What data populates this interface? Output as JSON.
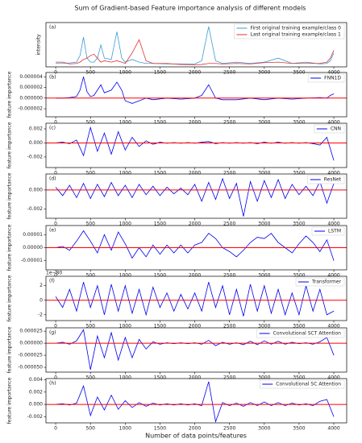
{
  "chart_data": [
    {
      "type": "line",
      "title": "Sum of Gradient-based Feature importance analysis of different models",
      "label": "(a)",
      "ylabel": "intensity",
      "x": [
        0,
        100,
        200,
        300,
        350,
        400,
        450,
        500,
        550,
        600,
        650,
        700,
        800,
        880,
        950,
        1000,
        1100,
        1200,
        1300,
        1400,
        1600,
        1800,
        2000,
        2100,
        2200,
        2300,
        2400,
        2600,
        2800,
        3000,
        3200,
        3400,
        3600,
        3800,
        3900,
        3950,
        4000
      ],
      "series": [
        {
          "name": "First original training example/class 0",
          "color": "#3a9bd5",
          "values": [
            1,
            1,
            1.2,
            1.5,
            4,
            11,
            3,
            1.5,
            1.5,
            3,
            8,
            3,
            2.5,
            13,
            3,
            1.5,
            2.5,
            1.5,
            1,
            1,
            0.8,
            0.8,
            0.8,
            2,
            15,
            2,
            1,
            1.5,
            1,
            1.5,
            3,
            1,
            1.5,
            0.8,
            1,
            2,
            5
          ]
        },
        {
          "name": "Last original training example/class 1",
          "color": "#e03030",
          "values": [
            1.5,
            1.5,
            0.8,
            1,
            1.5,
            2.5,
            3,
            4,
            4.5,
            3,
            1.5,
            2,
            1.5,
            2,
            1.5,
            1,
            5,
            10,
            2,
            1,
            1,
            0.6,
            0.5,
            0.6,
            1,
            1,
            0.8,
            1,
            0.8,
            1.3,
            1.5,
            1,
            1,
            1,
            1.5,
            3,
            6
          ]
        }
      ],
      "xlim": [
        -140,
        4185
      ],
      "xticks": [
        0,
        500,
        1000,
        1500,
        2000,
        2500,
        3000,
        3500,
        4000
      ],
      "ylim": [
        -0.3,
        16.5
      ],
      "yticks": []
    },
    {
      "type": "line",
      "label": "(b)",
      "ylabel": "feature importance",
      "hline": 0,
      "hline_color": "#ff0000",
      "x": [
        0,
        100,
        200,
        300,
        350,
        400,
        450,
        500,
        550,
        600,
        650,
        700,
        800,
        880,
        950,
        1000,
        1100,
        1200,
        1300,
        1400,
        1600,
        1800,
        2000,
        2100,
        2200,
        2300,
        2400,
        2600,
        2800,
        3000,
        3200,
        3400,
        3600,
        3800,
        3900,
        3950,
        4000
      ],
      "series": [
        {
          "name": "FNN1D",
          "color": "#0000ee",
          "values": [
            0,
            0,
            1e-07,
            3e-07,
            1.5e-06,
            4e-06,
            1.2e-06,
            3e-07,
            5e-07,
            1.5e-06,
            2.5e-06,
            1e-06,
            1.5e-06,
            3e-06,
            1.5e-06,
            -5e-07,
            -1e-06,
            -5e-07,
            0,
            -3e-07,
            0,
            -2e-07,
            0,
            5e-07,
            2.5e-06,
            0,
            -3e-07,
            -3e-07,
            0,
            -3e-07,
            0,
            -2e-07,
            0,
            1e-07,
            0,
            5e-07,
            8e-07
          ]
        }
      ],
      "xlim": [
        -140,
        4185
      ],
      "xticks": [
        0,
        500,
        1000,
        1500,
        2000,
        2500,
        3000,
        3500,
        4000
      ],
      "ylim": [
        -3.5e-06,
        4.8e-06
      ],
      "yticks": [
        {
          "value": -2e-06,
          "label": "-0.000002"
        },
        {
          "value": 0,
          "label": "0.000000"
        },
        {
          "value": 2e-06,
          "label": "0.000002"
        },
        {
          "value": 4e-06,
          "label": "0.000004"
        }
      ]
    },
    {
      "type": "line",
      "label": "(c)",
      "ylabel": "feature importance",
      "hline": 0,
      "hline_color": "#ff0000",
      "x": [
        0,
        100,
        200,
        300,
        400,
        500,
        600,
        700,
        800,
        900,
        1000,
        1100,
        1200,
        1300,
        1400,
        1500,
        1600,
        1700,
        1800,
        1900,
        2000,
        2100,
        2200,
        2300,
        2400,
        2500,
        2600,
        2700,
        2800,
        2900,
        3000,
        3100,
        3200,
        3300,
        3400,
        3500,
        3600,
        3700,
        3800,
        3900,
        4000
      ],
      "series": [
        {
          "name": "CNN",
          "color": "#0000ee",
          "values": [
            0,
            0.0001,
            -0.0001,
            0.0004,
            -0.0018,
            0.0022,
            -0.0012,
            0.0014,
            -0.0016,
            0.0016,
            -0.001,
            0.0008,
            -0.0005,
            0.0003,
            -0.0002,
            0.0001,
            -5e-05,
            5e-05,
            -5e-05,
            5e-05,
            -5e-05,
            0.0001,
            0.0002,
            -0.0001,
            5e-05,
            -5e-05,
            5e-05,
            -5e-05,
            5e-05,
            -0.0001,
            0.0001,
            -5e-05,
            0.0001,
            -5e-05,
            5e-05,
            -5e-05,
            5e-05,
            -0.0001,
            -0.0003,
            0.0008,
            -0.0025
          ]
        }
      ],
      "xlim": [
        -140,
        4185
      ],
      "xticks": [
        0,
        500,
        1000,
        1500,
        2000,
        2500,
        3000,
        3500,
        4000
      ],
      "ylim": [
        -0.0035,
        0.0028
      ],
      "yticks": [
        {
          "value": -0.002,
          "label": "-0.002"
        },
        {
          "value": 0,
          "label": "0.000"
        },
        {
          "value": 0.002,
          "label": "0.002"
        }
      ]
    },
    {
      "type": "line",
      "label": "(d)",
      "ylabel": "feature importance",
      "hline": 0,
      "hline_color": "#ff0000",
      "x": [
        0,
        100,
        200,
        300,
        400,
        500,
        600,
        700,
        800,
        900,
        1000,
        1100,
        1200,
        1300,
        1400,
        1500,
        1600,
        1700,
        1800,
        1900,
        2000,
        2100,
        2200,
        2300,
        2400,
        2500,
        2600,
        2700,
        2800,
        2900,
        3000,
        3100,
        3200,
        3300,
        3400,
        3500,
        3600,
        3700,
        3800,
        3900,
        4000
      ],
      "series": [
        {
          "name": "ResNet",
          "color": "#0000ee",
          "values": [
            0.0003,
            -0.0006,
            0.0005,
            -0.0008,
            0.0007,
            -0.0009,
            0.0006,
            -0.0007,
            0.0008,
            -0.0006,
            0.0005,
            -0.0008,
            0.0006,
            -0.0005,
            0.0004,
            -0.0006,
            0.0003,
            -0.0004,
            0.0002,
            -0.0005,
            0.0006,
            -0.0012,
            0.0008,
            -0.001,
            0.0012,
            -0.0009,
            0.0007,
            -0.0028,
            0.0009,
            -0.0012,
            0.001,
            -0.0008,
            0.0011,
            -0.0009,
            0.0006,
            -0.0005,
            0.0004,
            -0.0006,
            0.0009,
            -0.0014,
            0.0007
          ]
        }
      ],
      "xlim": [
        -140,
        4185
      ],
      "xticks": [
        0,
        500,
        1000,
        1500,
        2000,
        2500,
        3000,
        3500,
        4000
      ],
      "ylim": [
        -0.003,
        0.0017
      ],
      "yticks": [
        {
          "value": -0.002,
          "label": "-0.002"
        },
        {
          "value": 0,
          "label": "0.000"
        }
      ]
    },
    {
      "type": "line",
      "label": "(e)",
      "ylabel": "feature importance",
      "hline": 0,
      "hline_color": "#ff0000",
      "x": [
        0,
        100,
        200,
        300,
        400,
        500,
        600,
        700,
        800,
        900,
        1000,
        1100,
        1200,
        1300,
        1400,
        1500,
        1600,
        1700,
        1800,
        1900,
        2000,
        2100,
        2200,
        2300,
        2400,
        2500,
        2600,
        2700,
        2800,
        2900,
        3000,
        3100,
        3200,
        3300,
        3400,
        3500,
        3600,
        3700,
        3800,
        3900,
        4000
      ],
      "series": [
        {
          "name": "LSTM",
          "color": "#0000ee",
          "values": [
            0,
            1e-06,
            -2e-06,
            5e-06,
            1.3e-05,
            5e-06,
            -4e-06,
            1e-05,
            -2e-06,
            1.2e-05,
            3e-06,
            -8e-06,
            0,
            -7e-06,
            2e-06,
            -5e-06,
            2e-06,
            -4e-06,
            2e-06,
            -4e-06,
            2e-06,
            4e-06,
            1.1e-05,
            7e-06,
            0,
            -3e-06,
            -7e-06,
            -2e-06,
            4e-06,
            8e-06,
            7e-06,
            1.1e-05,
            4e-06,
            0,
            -4e-06,
            3e-06,
            9e-06,
            4e-06,
            -3e-06,
            6e-06,
            -1e-05
          ]
        }
      ],
      "xlim": [
        -140,
        4185
      ],
      "xticks": [
        0,
        500,
        1000,
        1500,
        2000,
        2500,
        3000,
        3500,
        4000
      ],
      "ylim": [
        -1.7e-05,
        1.7e-05
      ],
      "yticks": [
        {
          "value": -1e-05,
          "label": "-0.00001"
        },
        {
          "value": 0,
          "label": "0.00000"
        },
        {
          "value": 1e-05,
          "label": "0.00001"
        }
      ]
    },
    {
      "type": "line",
      "label": "(f)",
      "ylabel": "feature importance",
      "y_offset_label": "1e−80",
      "hline": 0,
      "hline_color": "#ff0000",
      "x": [
        0,
        100,
        200,
        300,
        400,
        500,
        600,
        700,
        800,
        900,
        1000,
        1100,
        1200,
        1300,
        1400,
        1500,
        1600,
        1700,
        1800,
        1900,
        2000,
        2100,
        2200,
        2300,
        2400,
        2500,
        2600,
        2700,
        2800,
        2900,
        3000,
        3100,
        3200,
        3300,
        3400,
        3500,
        3600,
        3700,
        3800,
        3900,
        4000
      ],
      "series": [
        {
          "name": "Transformer",
          "color": "#0000ee",
          "values": [
            0.5,
            -1,
            1.5,
            -1.5,
            2.5,
            -1,
            2,
            -2,
            2.2,
            -1.5,
            2,
            -1.8,
            1.5,
            -2,
            1.8,
            -1,
            1,
            -1.5,
            0.8,
            -1.2,
            1,
            -1.5,
            2.5,
            -1,
            2,
            -2,
            1.5,
            -2.2,
            2.2,
            -1.5,
            2,
            -1.8,
            1.5,
            -2,
            1,
            -2,
            2,
            -1.5,
            1.5,
            -2,
            -1.5
          ]
        }
      ],
      "xlim": [
        -140,
        4185
      ],
      "xticks": [
        0,
        500,
        1000,
        1500,
        2000,
        2500,
        3000,
        3500,
        4000
      ],
      "ylim": [
        -2.8,
        3.3
      ],
      "yticks": [
        -2,
        0,
        2
      ]
    },
    {
      "type": "line",
      "label": "(g)",
      "ylabel": "feature importance",
      "hline": 0,
      "hline_color": "#ff0000",
      "x": [
        0,
        100,
        200,
        300,
        400,
        500,
        600,
        700,
        800,
        900,
        1000,
        1100,
        1200,
        1300,
        1400,
        1500,
        1600,
        1700,
        1800,
        1900,
        2000,
        2100,
        2200,
        2300,
        2400,
        2500,
        2600,
        2700,
        2800,
        2900,
        3000,
        3100,
        3200,
        3300,
        3400,
        3500,
        3600,
        3700,
        3800,
        3900,
        4000
      ],
      "series": [
        {
          "name": "Convolutional SCT Attention",
          "color": "#0000ee",
          "values": [
            0,
            2e-06,
            -2e-06,
            5e-06,
            2.8e-05,
            -5.5e-05,
            1.5e-05,
            -3e-05,
            2.2e-05,
            -3.5e-05,
            1.2e-05,
            -3e-05,
            8e-06,
            -1.2e-05,
            3e-06,
            -2e-06,
            1e-06,
            -1e-06,
            1e-06,
            -1e-06,
            1e-06,
            -2e-06,
            6e-06,
            -5e-06,
            2e-06,
            -2e-06,
            1e-06,
            -3e-06,
            4e-06,
            -3e-06,
            5e-06,
            -2e-06,
            4e-06,
            -2e-06,
            2e-06,
            -1e-06,
            1e-06,
            -2e-06,
            3e-06,
            1.2e-05,
            -2.5e-05
          ]
        }
      ],
      "xlim": [
        -140,
        4185
      ],
      "xticks": [
        0,
        500,
        1000,
        1500,
        2000,
        2500,
        3000,
        3500,
        4000
      ],
      "ylim": [
        -6e-05,
        3.2e-05
      ],
      "yticks": [
        {
          "value": -5e-05,
          "label": "-0.000050"
        },
        {
          "value": -2.5e-05,
          "label": "-0.000025"
        },
        {
          "value": 0,
          "label": "0.000000"
        },
        {
          "value": 2.5e-05,
          "label": "0.000025"
        }
      ]
    },
    {
      "type": "line",
      "label": "(h)",
      "ylabel": "feature importance",
      "xlabel": "Number of data points/features",
      "hline": 0,
      "hline_color": "#ff0000",
      "x": [
        0,
        100,
        200,
        300,
        400,
        500,
        600,
        700,
        800,
        900,
        1000,
        1100,
        1200,
        1300,
        1400,
        1500,
        1600,
        1700,
        1800,
        1900,
        2000,
        2100,
        2200,
        2300,
        2400,
        2500,
        2600,
        2700,
        2800,
        2900,
        3000,
        3100,
        3200,
        3300,
        3400,
        3500,
        3600,
        3700,
        3800,
        3900,
        4000
      ],
      "series": [
        {
          "name": "Convolutional SC Attention",
          "color": "#0000ee",
          "values": [
            0,
            0.0001,
            -0.0001,
            0.0002,
            0.003,
            -0.0018,
            0.0012,
            -0.0009,
            0.0015,
            -0.0008,
            0.0006,
            -0.0005,
            0.0003,
            -0.0003,
            0.0002,
            -0.0001,
            0.0001,
            -0.0001,
            0.0001,
            -0.0001,
            0.0001,
            -0.0002,
            0.0037,
            -0.0028,
            0.0003,
            -0.0002,
            0.0002,
            -0.0003,
            0.0003,
            -0.0002,
            0.0004,
            -0.0002,
            0.0003,
            -0.0002,
            0.0002,
            -0.0001,
            0.0001,
            -0.0002,
            0.0005,
            0.0008,
            -0.002
          ]
        }
      ],
      "xlim": [
        -140,
        4185
      ],
      "xticks": [
        0,
        500,
        1000,
        1500,
        2000,
        2500,
        3000,
        3500,
        4000
      ],
      "ylim": [
        -0.003,
        0.0042
      ],
      "yticks": [
        {
          "value": -0.002,
          "label": "-0.002"
        },
        {
          "value": 0,
          "label": "0.000"
        },
        {
          "value": 0.002,
          "label": "0.002"
        },
        {
          "value": 0.004,
          "label": "0.004"
        }
      ]
    }
  ]
}
